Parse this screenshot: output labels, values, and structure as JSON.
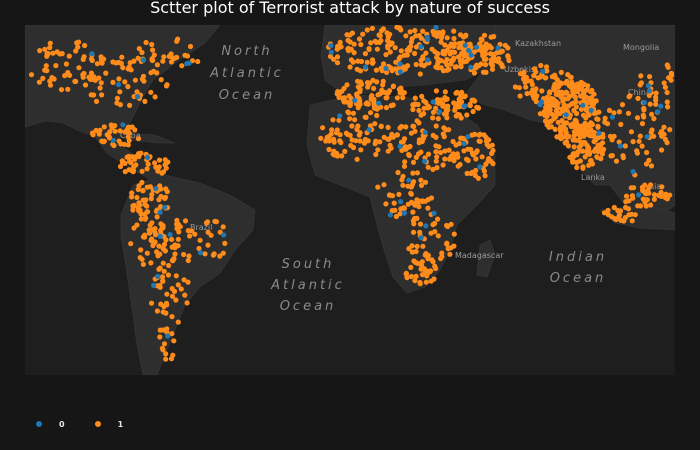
{
  "title": "Sctter plot of Terrorist attack by nature of success",
  "colors": {
    "background": "#161616",
    "land": "#2e2e2e",
    "water": "#1e1e1e",
    "success_0": "#1f77b4",
    "success_1": "#ff8c1a"
  },
  "ocean_labels": {
    "north_atlantic": [
      "North",
      "Atlantic",
      "Ocean"
    ],
    "south_atlantic": [
      "South",
      "Atlantic",
      "Ocean"
    ],
    "indian": [
      "Indian",
      "Ocean"
    ]
  },
  "place_labels": {
    "kazakhstan": "Kazakhstan",
    "mongolia": "Mongolia",
    "uzbekistan": "Uzbekist",
    "china": "China",
    "cuba": "Cuba",
    "brazil": "Brazil",
    "madagascar": "Madagascar",
    "lanka": "Lanka",
    "malaysia": "lysia"
  },
  "legend": [
    {
      "label": "0",
      "color": "#1f77b4"
    },
    {
      "label": "1",
      "color": "#ff8c1a"
    }
  ]
}
